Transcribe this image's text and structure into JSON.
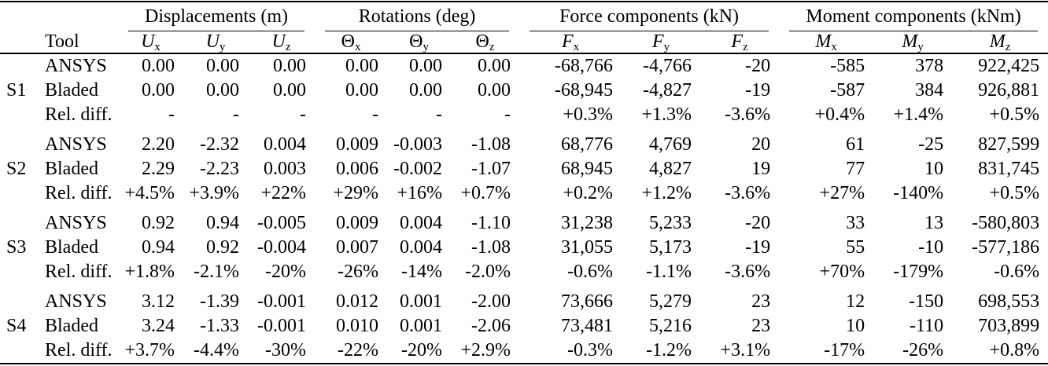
{
  "colors": {
    "background": "#ffffff",
    "text": "#000000",
    "rule": "#000000"
  },
  "table": {
    "tool_header": "Tool",
    "groups": [
      {
        "key": "displacements",
        "label": "Displacements (m)"
      },
      {
        "key": "rotations",
        "label": "Rotations (deg)"
      },
      {
        "key": "forces",
        "label": "Force components (kN)"
      },
      {
        "key": "moments",
        "label": "Moment components (kNm)"
      }
    ],
    "columns": [
      {
        "base": "U",
        "sub": "x",
        "italic": true
      },
      {
        "base": "U",
        "sub": "y",
        "italic": true
      },
      {
        "base": "U",
        "sub": "z",
        "italic": true
      },
      {
        "base": "Θ",
        "sub": "x",
        "italic": false
      },
      {
        "base": "Θ",
        "sub": "y",
        "italic": false
      },
      {
        "base": "Θ",
        "sub": "z",
        "italic": false
      },
      {
        "base": "F",
        "sub": "x",
        "italic": true
      },
      {
        "base": "F",
        "sub": "y",
        "italic": true
      },
      {
        "base": "F",
        "sub": "z",
        "italic": true
      },
      {
        "base": "M",
        "sub": "x",
        "italic": true
      },
      {
        "base": "M",
        "sub": "y",
        "italic": true
      },
      {
        "base": "M",
        "sub": "z",
        "italic": true
      }
    ],
    "sections": [
      {
        "id": "S1",
        "rows": [
          {
            "tool": "ANSYS",
            "values": [
              "0.00",
              "0.00",
              "0.00",
              "0.00",
              "0.00",
              "0.00",
              "-68,766",
              "-4,766",
              "-20",
              "-585",
              "378",
              "922,425"
            ]
          },
          {
            "tool": "Bladed",
            "values": [
              "0.00",
              "0.00",
              "0.00",
              "0.00",
              "0.00",
              "0.00",
              "-68,945",
              "-4,827",
              "-19",
              "-587",
              "384",
              "926,881"
            ]
          },
          {
            "tool": "Rel. diff.",
            "values": [
              "-",
              "-",
              "-",
              "-",
              "-",
              "-",
              "+0.3%",
              "+1.3%",
              "-3.6%",
              "+0.4%",
              "+1.4%",
              "+0.5%"
            ]
          }
        ]
      },
      {
        "id": "S2",
        "rows": [
          {
            "tool": "ANSYS",
            "values": [
              "2.20",
              "-2.32",
              "0.004",
              "0.009",
              "-0.003",
              "-1.08",
              "68,776",
              "4,769",
              "20",
              "61",
              "-25",
              "827,599"
            ]
          },
          {
            "tool": "Bladed",
            "values": [
              "2.29",
              "-2.23",
              "0.003",
              "0.006",
              "-0.002",
              "-1.07",
              "68,945",
              "4,827",
              "19",
              "77",
              "10",
              "831,745"
            ]
          },
          {
            "tool": "Rel. diff.",
            "values": [
              "+4.5%",
              "+3.9%",
              "+22%",
              "+29%",
              "+16%",
              "+0.7%",
              "+0.2%",
              "+1.2%",
              "-3.6%",
              "+27%",
              "-140%",
              "+0.5%"
            ]
          }
        ]
      },
      {
        "id": "S3",
        "rows": [
          {
            "tool": "ANSYS",
            "values": [
              "0.92",
              "0.94",
              "-0.005",
              "0.009",
              "0.004",
              "-1.10",
              "31,238",
              "5,233",
              "-20",
              "33",
              "13",
              "-580,803"
            ]
          },
          {
            "tool": "Bladed",
            "values": [
              "0.94",
              "0.92",
              "-0.004",
              "0.007",
              "0.004",
              "-1.08",
              "31,055",
              "5,173",
              "-19",
              "55",
              "-10",
              "-577,186"
            ]
          },
          {
            "tool": "Rel. diff.",
            "values": [
              "+1.8%",
              "-2.1%",
              "-20%",
              "-26%",
              "-14%",
              "-2.0%",
              "-0.6%",
              "-1.1%",
              "-3.6%",
              "+70%",
              "-179%",
              "-0.6%"
            ]
          }
        ]
      },
      {
        "id": "S4",
        "rows": [
          {
            "tool": "ANSYS",
            "values": [
              "3.12",
              "-1.39",
              "-0.001",
              "0.012",
              "0.001",
              "-2.00",
              "73,666",
              "5,279",
              "23",
              "12",
              "-150",
              "698,553"
            ]
          },
          {
            "tool": "Bladed",
            "values": [
              "3.24",
              "-1.33",
              "-0.001",
              "0.010",
              "0.001",
              "-2.06",
              "73,481",
              "5,216",
              "23",
              "10",
              "-110",
              "703,899"
            ]
          },
          {
            "tool": "Rel. diff.",
            "values": [
              "+3.7%",
              "-4.4%",
              "-30%",
              "-22%",
              "-20%",
              "+2.9%",
              "-0.3%",
              "-1.2%",
              "+3.1%",
              "-17%",
              "-26%",
              "+0.8%"
            ]
          }
        ]
      }
    ]
  }
}
